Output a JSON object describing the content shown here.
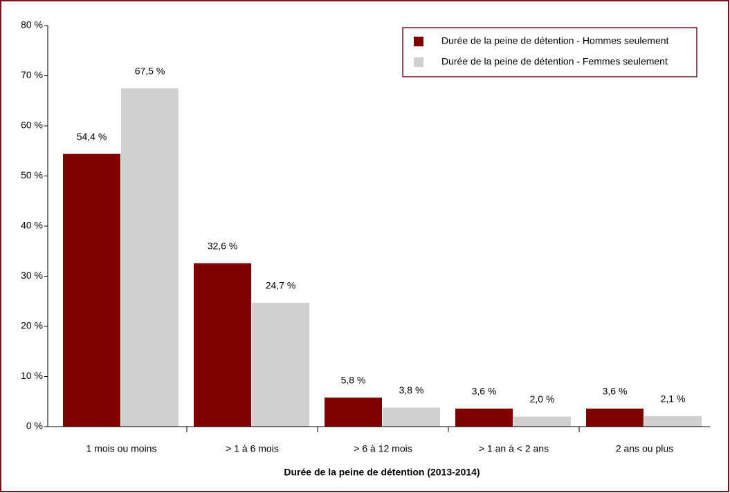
{
  "chart_data": {
    "type": "bar",
    "x_label": "Durée de la peine de détention  (2013-2014)",
    "categories": [
      "1 mois ou moins",
      "> 1 à 6 mois",
      "> 6 à 12 mois",
      "> 1 an à < 2 ans",
      "2 ans ou plus"
    ],
    "series": [
      {
        "name": "Durée de la peine de détention - Hommes seulement",
        "color": "#800000",
        "values": [
          54.4,
          32.6,
          5.8,
          3.6,
          3.6
        ],
        "value_labels": [
          "54,4 %",
          "32,6 %",
          "5,8 %",
          "3,6 %",
          "3,6 %"
        ]
      },
      {
        "name": "Durée de la peine de détention - Femmes seulement",
        "color": "#d0d0d0",
        "values": [
          67.5,
          24.7,
          3.8,
          2.0,
          2.1
        ],
        "value_labels": [
          "67,5 %",
          "24,7 %",
          "3,8 %",
          "2,0 %",
          "2,1 %"
        ]
      }
    ],
    "ylim": [
      0,
      80
    ],
    "yticks": [
      {
        "value": 0,
        "label": "0 %"
      },
      {
        "value": 10,
        "label": "10 %"
      },
      {
        "value": 20,
        "label": "20 %"
      },
      {
        "value": 30,
        "label": "30 %"
      },
      {
        "value": 40,
        "label": "40 %"
      },
      {
        "value": 50,
        "label": "50 %"
      },
      {
        "value": 60,
        "label": "60 %"
      },
      {
        "value": 70,
        "label": "70 %"
      },
      {
        "value": 80,
        "label": "80 %"
      }
    ],
    "legend": "upper right"
  }
}
